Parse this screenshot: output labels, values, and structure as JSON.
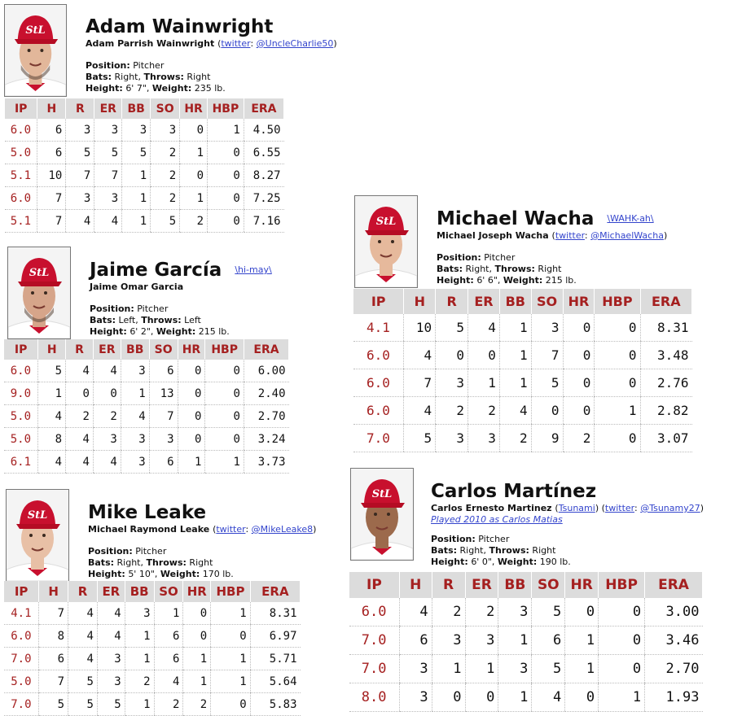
{
  "headers": [
    "IP",
    "H",
    "R",
    "ER",
    "BB",
    "SO",
    "HR",
    "HBP",
    "ERA"
  ],
  "colors": {
    "stat_red": "#a52020",
    "header_bg": "#dcdcdc",
    "link_blue": "#3344cc",
    "cap_red": "#c8102e"
  },
  "labels": {
    "position": "Position:",
    "bats": "Bats:",
    "throws": "Throws:",
    "height": "Height:",
    "weight": "Weight:"
  },
  "players": {
    "wainwright": {
      "name": "Adam Wainwright",
      "full_name": "Adam Parrish Wainwright",
      "twitter_word": "twitter",
      "twitter_handle": "@UncleCharlie50",
      "position": "Pitcher",
      "bats": "Right,",
      "throws": "Right",
      "height": "6' 7\",",
      "weight": "235 lb.",
      "rows": [
        [
          "6.0",
          "6",
          "3",
          "3",
          "3",
          "3",
          "0",
          "1",
          "4.50"
        ],
        [
          "5.0",
          "6",
          "5",
          "5",
          "5",
          "2",
          "1",
          "0",
          "6.55"
        ],
        [
          "5.1",
          "10",
          "7",
          "7",
          "1",
          "2",
          "0",
          "0",
          "8.27"
        ],
        [
          "6.0",
          "7",
          "3",
          "3",
          "1",
          "2",
          "1",
          "0",
          "7.25"
        ],
        [
          "5.1",
          "7",
          "4",
          "4",
          "1",
          "5",
          "2",
          "0",
          "7.16"
        ]
      ]
    },
    "garcia": {
      "name": "Jaime García",
      "pron": "\\hi-may\\",
      "full_name": "Jaime Omar Garcia",
      "position": "Pitcher",
      "bats": "Left,",
      "throws": "Left",
      "height": "6' 2\",",
      "weight": "215 lb.",
      "rows": [
        [
          "6.0",
          "5",
          "4",
          "4",
          "3",
          "6",
          "0",
          "0",
          "6.00"
        ],
        [
          "9.0",
          "1",
          "0",
          "0",
          "1",
          "13",
          "0",
          "0",
          "2.40"
        ],
        [
          "5.0",
          "4",
          "2",
          "2",
          "4",
          "7",
          "0",
          "0",
          "2.70"
        ],
        [
          "5.0",
          "8",
          "4",
          "3",
          "3",
          "3",
          "0",
          "0",
          "3.24"
        ],
        [
          "6.1",
          "4",
          "4",
          "4",
          "3",
          "6",
          "1",
          "1",
          "3.73"
        ]
      ]
    },
    "leake": {
      "name": "Mike Leake",
      "full_name": "Michael Raymond Leake",
      "twitter_word": "twitter",
      "twitter_handle": "@MikeLeake8",
      "position": "Pitcher",
      "bats": "Right,",
      "throws": "Right",
      "height": "5' 10\",",
      "weight": "170 lb.",
      "rows": [
        [
          "4.1",
          "7",
          "4",
          "4",
          "3",
          "1",
          "0",
          "1",
          "8.31"
        ],
        [
          "6.0",
          "8",
          "4",
          "4",
          "1",
          "6",
          "0",
          "0",
          "6.97"
        ],
        [
          "7.0",
          "6",
          "4",
          "3",
          "1",
          "6",
          "1",
          "1",
          "5.71"
        ],
        [
          "5.0",
          "7",
          "5",
          "3",
          "2",
          "4",
          "1",
          "1",
          "5.64"
        ],
        [
          "7.0",
          "5",
          "5",
          "5",
          "1",
          "2",
          "2",
          "0",
          "5.83"
        ]
      ]
    },
    "wacha": {
      "name": "Michael Wacha",
      "pron": "\\WAHK-ah\\",
      "full_name": "Michael Joseph Wacha",
      "twitter_word": "twitter",
      "twitter_handle": "@MichaelWacha",
      "position": "Pitcher",
      "bats": "Right,",
      "throws": "Right",
      "height": "6' 6\",",
      "weight": "215 lb.",
      "rows": [
        [
          "4.1",
          "10",
          "5",
          "4",
          "1",
          "3",
          "0",
          "0",
          "8.31"
        ],
        [
          "6.0",
          "4",
          "0",
          "0",
          "1",
          "7",
          "0",
          "0",
          "3.48"
        ],
        [
          "6.0",
          "7",
          "3",
          "1",
          "1",
          "5",
          "0",
          "0",
          "2.76"
        ],
        [
          "6.0",
          "4",
          "2",
          "2",
          "4",
          "0",
          "0",
          "1",
          "2.82"
        ],
        [
          "7.0",
          "5",
          "3",
          "3",
          "2",
          "9",
          "2",
          "0",
          "3.07"
        ]
      ]
    },
    "martinez": {
      "name": "Carlos Martínez",
      "full_name": "Carlos Ernesto Martinez",
      "nick": "Tsunami",
      "twitter_word": "twitter",
      "twitter_handle": "@Tsunamy27",
      "played_as": "Played 2010 as Carlos Matias",
      "position": "Pitcher",
      "bats": "Right,",
      "throws": "Right",
      "height": "6' 0\",",
      "weight": "190 lb.",
      "rows": [
        [
          "6.0",
          "4",
          "2",
          "2",
          "3",
          "5",
          "0",
          "0",
          "3.00"
        ],
        [
          "7.0",
          "6",
          "3",
          "3",
          "1",
          "6",
          "1",
          "0",
          "3.46"
        ],
        [
          "7.0",
          "3",
          "1",
          "1",
          "3",
          "5",
          "1",
          "0",
          "2.70"
        ],
        [
          "8.0",
          "3",
          "0",
          "0",
          "1",
          "4",
          "0",
          "1",
          "1.93"
        ]
      ]
    }
  }
}
